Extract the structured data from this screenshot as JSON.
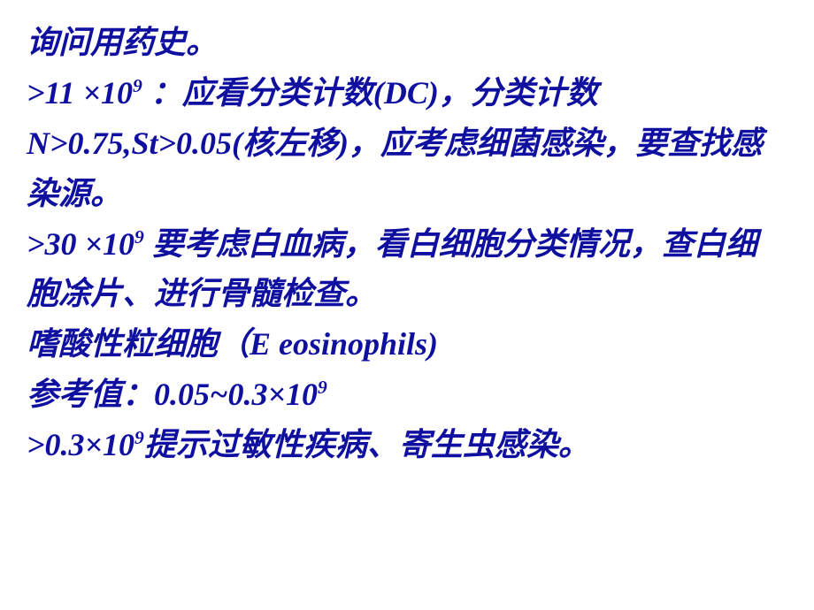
{
  "text": {
    "line1": "询问用药史。",
    "line2_p1": ">11 ×10",
    "line2_sup": "9",
    "line2_p2": " ：应看分类计数(DC)，分类计数N>0.75,St>0.05(核左移)，应考虑细菌感染，要查找感染源。",
    "line3_p1": ">30 ×10",
    "line3_sup": "9",
    "line3_p2": " 要考虑白血病，看白细胞分类情况，查白细胞凃片、进行骨髓检查。",
    "line4": "嗜酸性粒细胞（E  eosinophils)",
    "line5_p1": "参考值：0.05~0.3×10",
    "line5_sup": "9",
    "line6_p1": " >0.3×10",
    "line6_sup": "9",
    "line6_p2": "提示过敏性疾病、寄生虫感染。"
  },
  "style": {
    "text_color": "#1010a0",
    "background_color": "#ffffff",
    "font_size": 36,
    "font_family": "KaiTi",
    "font_weight": "bold",
    "font_style": "italic",
    "line_height": 1.58
  }
}
